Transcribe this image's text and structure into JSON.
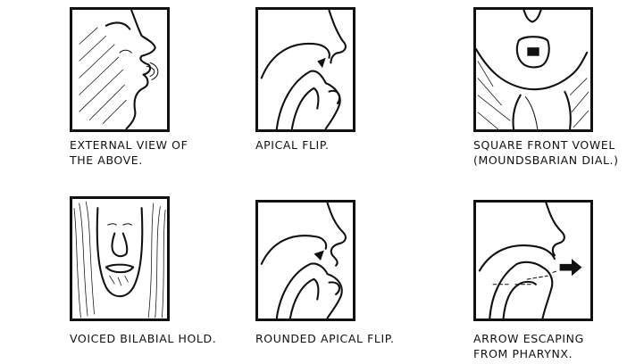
{
  "panels": [
    {
      "caption": "EXTERNAL VIEW OF\nTHE ABOVE."
    },
    {
      "caption": "APICAL FLIP."
    },
    {
      "caption": "SQUARE FRONT VOWEL\n(MOUNDSBARIAN DIAL.)"
    },
    {
      "caption": "VOICED BILABIAL HOLD."
    },
    {
      "caption": "ROUNDED APICAL FLIP."
    },
    {
      "caption": "ARROW ESCAPING\nFROM PHARYNX."
    }
  ]
}
